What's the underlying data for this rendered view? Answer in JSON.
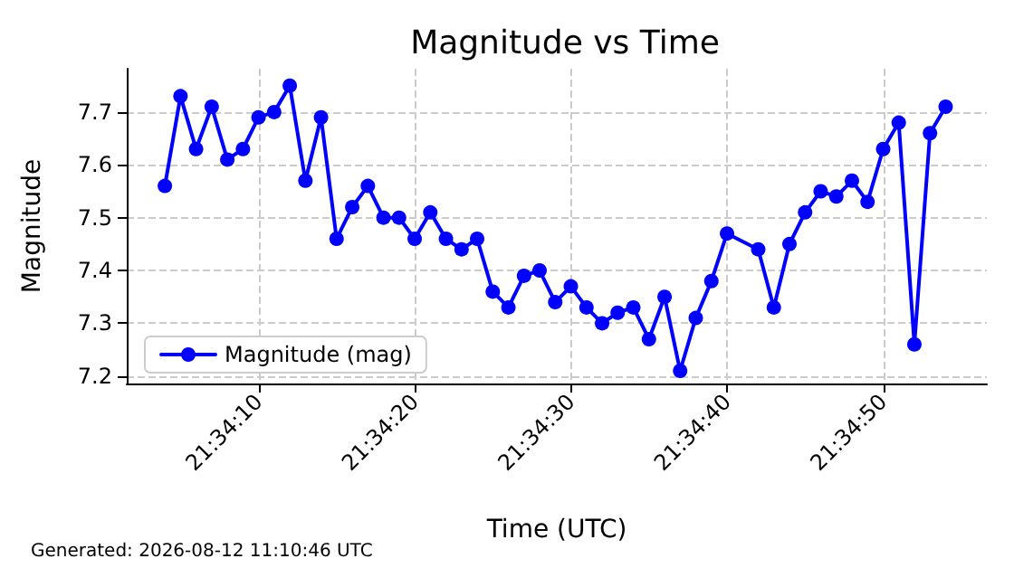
{
  "chart_data": {
    "type": "line",
    "title": "Magnitude vs Time",
    "xlabel": "Time (UTC)",
    "ylabel": "Magnitude",
    "annotations": [
      "Generated: 2026-08-12 11:10:46 UTC"
    ],
    "x": [
      21.567778,
      21.568056,
      21.568333,
      21.568611,
      21.568889,
      21.569167,
      21.569444,
      21.569722,
      21.57,
      21.570278,
      21.570556,
      21.570833,
      21.571111,
      21.571389,
      21.571667,
      21.571944,
      21.572222,
      21.5725,
      21.572778,
      21.573056,
      21.573333,
      21.573611,
      21.573889,
      21.574167,
      21.574444,
      21.574722,
      21.575,
      21.575278,
      21.575556,
      21.575833,
      21.576111,
      21.576389,
      21.576667,
      21.576944,
      21.577222,
      21.5775,
      21.577778,
      21.578333,
      21.578611,
      21.578889,
      21.579167,
      21.579444,
      21.579722,
      21.58,
      21.580278,
      21.580556,
      21.580833,
      21.581111,
      21.581389,
      21.581667
    ],
    "series": [
      {
        "name": "Magnitude (mag)",
        "color": "#0000ff",
        "values": [
          7.56,
          7.73,
          7.63,
          7.71,
          7.61,
          7.63,
          7.69,
          7.7,
          7.75,
          7.57,
          7.69,
          7.46,
          7.52,
          7.56,
          7.5,
          7.5,
          7.46,
          7.51,
          7.46,
          7.44,
          7.46,
          7.36,
          7.33,
          7.39,
          7.4,
          7.34,
          7.37,
          7.33,
          7.3,
          7.32,
          7.33,
          7.27,
          7.35,
          7.21,
          7.31,
          7.38,
          7.47,
          7.44,
          7.33,
          7.45,
          7.51,
          7.55,
          7.54,
          7.57,
          7.53,
          7.63,
          7.68,
          7.26,
          7.66,
          7.71
        ]
      }
    ],
    "xlim": [
      21.5671,
      21.5824
    ],
    "xticks": [
      {
        "value": 21.569444,
        "label": "21:34:10"
      },
      {
        "value": 21.572222,
        "label": "21:34:20"
      },
      {
        "value": 21.575,
        "label": "21:34:30"
      },
      {
        "value": 21.577778,
        "label": "21:34:40"
      },
      {
        "value": 21.580556,
        "label": "21:34:50"
      }
    ],
    "ylim": [
      7.186,
      7.782
    ],
    "yticks": [
      7.2,
      7.3,
      7.4,
      7.5,
      7.6,
      7.7
    ],
    "grid": true,
    "legend": "bottom left",
    "marker": "circle",
    "line_style": "solid"
  }
}
